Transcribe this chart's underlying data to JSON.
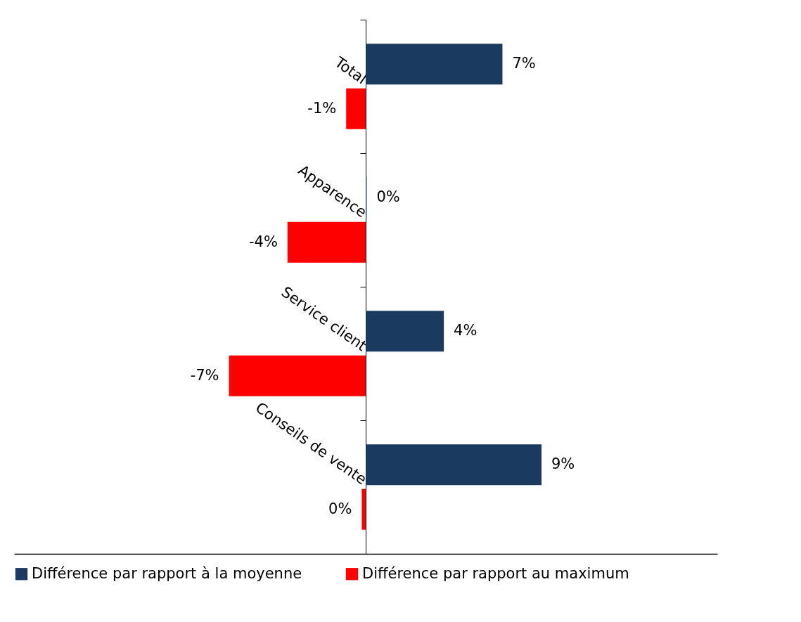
{
  "chart_data": {
    "type": "bar",
    "orientation": "horizontal",
    "categories": [
      "Total",
      "Apparence",
      "Service client",
      "Conseils de vente"
    ],
    "series": [
      {
        "name": "Différence par rapport à la moyenne",
        "color": "#1b3a5f",
        "values": [
          7,
          0.05,
          4,
          9
        ],
        "value_labels": [
          "7%",
          "0%",
          "4%",
          "9%"
        ]
      },
      {
        "name": "Différence par rapport au maximum",
        "color": "#ff0000",
        "values": [
          -1,
          -4,
          -7,
          -0.2
        ],
        "value_labels": [
          "-1%",
          "-4%",
          "-7%",
          "0%"
        ]
      }
    ],
    "xlim": [
      -18,
      18
    ],
    "tick_labels": "y",
    "grid": false,
    "legend": "bottom"
  }
}
